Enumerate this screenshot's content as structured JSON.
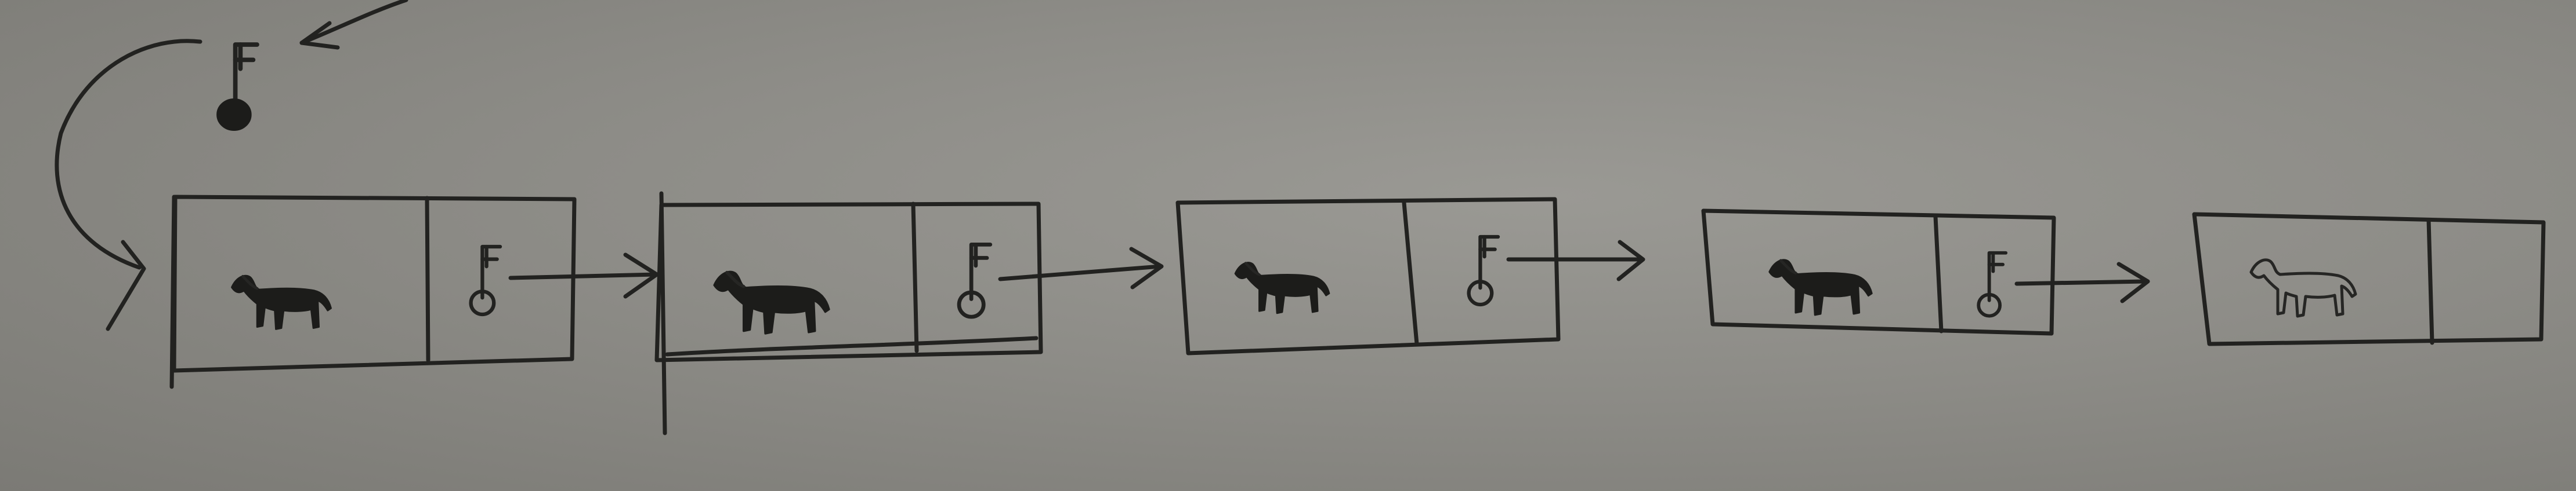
{
  "diagram": {
    "kind": "hand-drawn linked list",
    "ink_color": "#222220",
    "paper_color": "#8f8e89",
    "head_icon": "key-icon",
    "nodes": [
      {
        "value_icon": "horse-icon",
        "value_style": "filled",
        "pointer_icon": "key-icon",
        "points_to_next": true
      },
      {
        "value_icon": "horse-icon",
        "value_style": "filled",
        "pointer_icon": "key-icon",
        "points_to_next": true
      },
      {
        "value_icon": "horse-icon",
        "value_style": "filled",
        "pointer_icon": "key-icon",
        "points_to_next": true
      },
      {
        "value_icon": "horse-icon",
        "value_style": "filled",
        "pointer_icon": "key-icon",
        "points_to_next": true
      },
      {
        "value_icon": "horse-icon",
        "value_style": "outline",
        "pointer_icon": "",
        "points_to_next": false
      }
    ]
  }
}
